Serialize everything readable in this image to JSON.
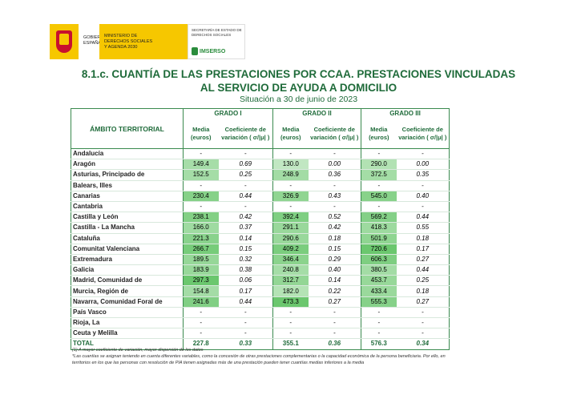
{
  "header": {
    "gobierno": "GOBIERNO DE ESPAÑA",
    "ministerio": "MINISTERIO DE DERECHOS SOCIALES Y AGENDA 2030",
    "secretaria": "SECRETARÍA DE ESTADO DE DERECHOS SOCIALES",
    "imserso": "IMSERSO"
  },
  "title": "8.1.c. CUANTÍA DE LAS PRESTACIONES POR CCAA. PRESTACIONES VINCULADAS AL SERVICIO DE AYUDA A DOMICILIO",
  "subtitle": "Situación a 30 de junio de 2023",
  "table": {
    "region_header": "ÁMBITO TERRITORIAL",
    "groups": [
      "GRADO I",
      "GRADO II",
      "GRADO III"
    ],
    "subheaders": [
      "Media (euros)",
      "Coeficiente de variación ( σ/|μ| )"
    ],
    "rows": [
      [
        "Andalucía",
        "-",
        "-",
        "-",
        "-",
        "-",
        "-"
      ],
      [
        "Aragón",
        "149.4",
        "0.69",
        "130.0",
        "0.00",
        "290.0",
        "0.00"
      ],
      [
        "Asturias, Principado de",
        "152.5",
        "0.25",
        "248.9",
        "0.36",
        "372.5",
        "0.35"
      ],
      [
        "Balears, Illes",
        "-",
        "-",
        "-",
        "-",
        "-",
        "-"
      ],
      [
        "Canarias",
        "230.4",
        "0.44",
        "326.9",
        "0.43",
        "545.0",
        "0.40"
      ],
      [
        "Cantabria",
        "-",
        "-",
        "-",
        "-",
        "-",
        "-"
      ],
      [
        "Castilla y León",
        "238.1",
        "0.42",
        "392.4",
        "0.52",
        "569.2",
        "0.44"
      ],
      [
        "Castilla - La Mancha",
        "166.0",
        "0.37",
        "291.1",
        "0.42",
        "418.3",
        "0.55"
      ],
      [
        "Cataluña",
        "221.3",
        "0.14",
        "290.6",
        "0.18",
        "501.9",
        "0.18"
      ],
      [
        "Comunitat Valenciana",
        "266.7",
        "0.15",
        "409.2",
        "0.15",
        "720.6",
        "0.17"
      ],
      [
        "Extremadura",
        "189.5",
        "0.32",
        "346.4",
        "0.29",
        "606.3",
        "0.27"
      ],
      [
        "Galicia",
        "183.9",
        "0.38",
        "240.8",
        "0.40",
        "380.5",
        "0.44"
      ],
      [
        "Madrid, Comunidad de",
        "297.3",
        "0.06",
        "312.7",
        "0.14",
        "453.7",
        "0.25"
      ],
      [
        "Murcia, Región de",
        "154.8",
        "0.17",
        "182.0",
        "0.22",
        "433.4",
        "0.18"
      ],
      [
        "Navarra, Comunidad Foral de",
        "241.6",
        "0.44",
        "473.3",
        "0.27",
        "555.3",
        "0.27"
      ],
      [
        "País Vasco",
        "-",
        "-",
        "-",
        "-",
        "-",
        "-"
      ],
      [
        "Rioja, La",
        "-",
        "-",
        "-",
        "-",
        "-",
        "-"
      ],
      [
        "Ceuta y Melilla",
        "-",
        "-",
        "-",
        "-",
        "-",
        "-"
      ]
    ],
    "total": [
      "TOTAL",
      "227.8",
      "0.33",
      "355.1",
      "0.36",
      "576.3",
      "0.34"
    ]
  },
  "notes": [
    "(1) A mayor coeficiente de variación, mayor dispersión de los datos",
    "*Las cuantías se asignan teniendo en cuenta diferentes variables, como la concesión de otras prestaciones complementarias o la capacidad económica de la persona beneficiaria. Por ello, en territorios en los que las personas con resolución de PIA tienen asignadas más de una prestación pueden tener cuantías medias inferiores a la media"
  ]
}
